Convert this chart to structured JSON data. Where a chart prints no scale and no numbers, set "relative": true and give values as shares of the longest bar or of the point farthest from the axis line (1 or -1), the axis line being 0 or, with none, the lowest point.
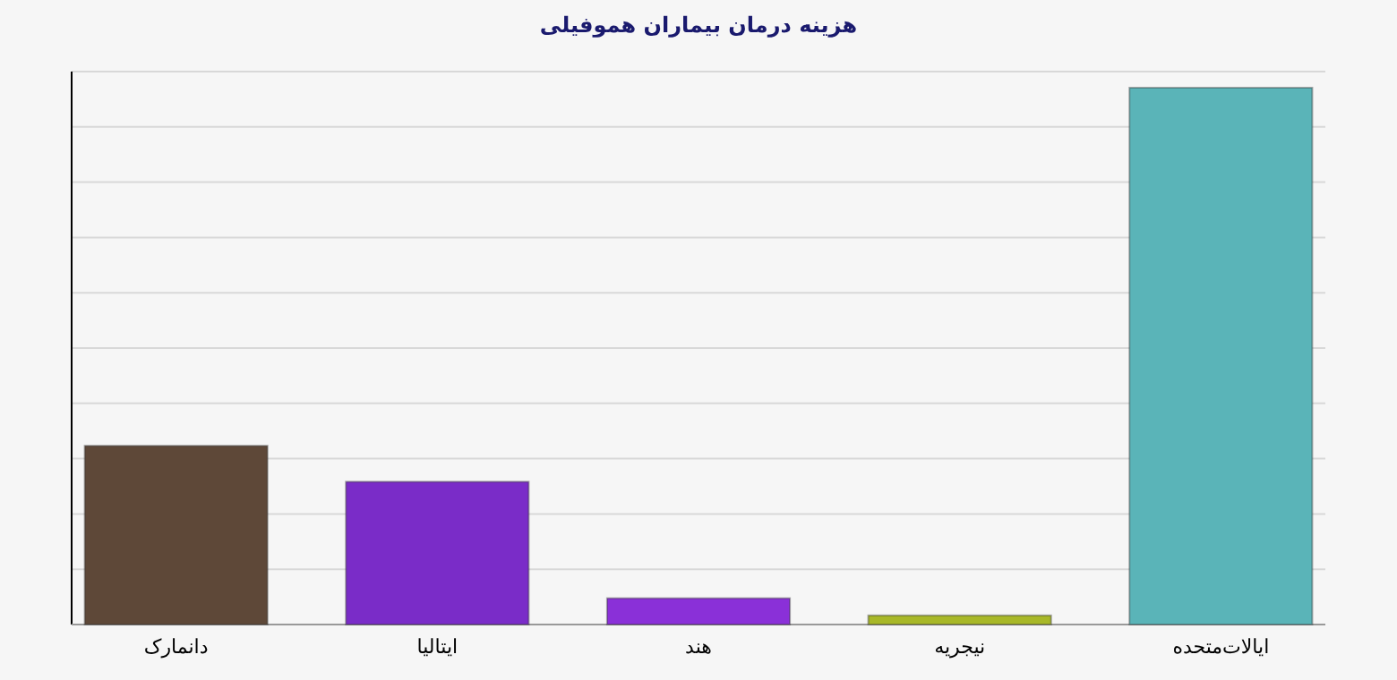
{
  "chart_data": {
    "type": "bar",
    "title": "هزینه درمان بیماران هموفیلی",
    "categories": [
      "دانمارک",
      "ایتالیا",
      "هند",
      "نیجریه",
      "ایالات‌متحده"
    ],
    "values": [
      0.333,
      0.266,
      0.049,
      0.017,
      1
    ],
    "colors": [
      "#5e4838",
      "#7a2cc8",
      "#8a30d8",
      "#a8b828",
      "#5ab4b8"
    ],
    "relative": true,
    "grid": true
  }
}
